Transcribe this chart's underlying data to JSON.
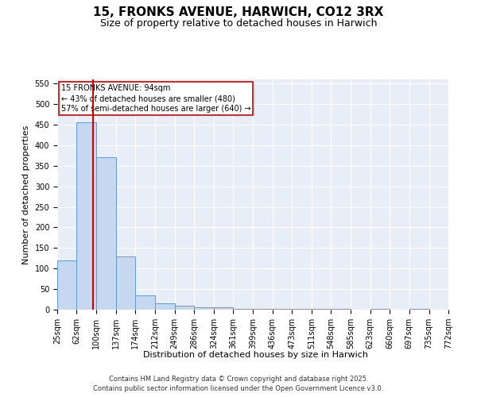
{
  "title": "15, FRONKS AVENUE, HARWICH, CO12 3RX",
  "subtitle": "Size of property relative to detached houses in Harwich",
  "xlabel": "Distribution of detached houses by size in Harwich",
  "ylabel": "Number of detached properties",
  "footnote1": "Contains HM Land Registry data © Crown copyright and database right 2025.",
  "footnote2": "Contains public sector information licensed under the Open Government Licence v3.0.",
  "annotation_title": "15 FRONKS AVENUE: 94sqm",
  "annotation_line2": "← 43% of detached houses are smaller (480)",
  "annotation_line3": "57% of semi-detached houses are larger (640) →",
  "bin_edges": [
    25,
    62,
    100,
    137,
    174,
    212,
    249,
    286,
    324,
    361,
    399,
    436,
    473,
    511,
    548,
    585,
    623,
    660,
    697,
    735,
    772
  ],
  "bar_heights": [
    120,
    455,
    370,
    130,
    35,
    15,
    10,
    5,
    5,
    2,
    2,
    2,
    1,
    1,
    1,
    0,
    1,
    0,
    1,
    0
  ],
  "bar_color": "#c5d8f0",
  "bar_edge_color": "#6699cc",
  "vline_color": "#cc0000",
  "vline_x": 94,
  "ylim": [
    0,
    560
  ],
  "yticks": [
    0,
    50,
    100,
    150,
    200,
    250,
    300,
    350,
    400,
    450,
    500,
    550
  ],
  "bg_color": "#e8eef8",
  "grid_color": "#ffffff",
  "annotation_box_color": "#cc0000",
  "title_fontsize": 11,
  "subtitle_fontsize": 9,
  "axis_label_fontsize": 8,
  "tick_fontsize": 7,
  "annotation_fontsize": 7,
  "footnote_fontsize": 6
}
